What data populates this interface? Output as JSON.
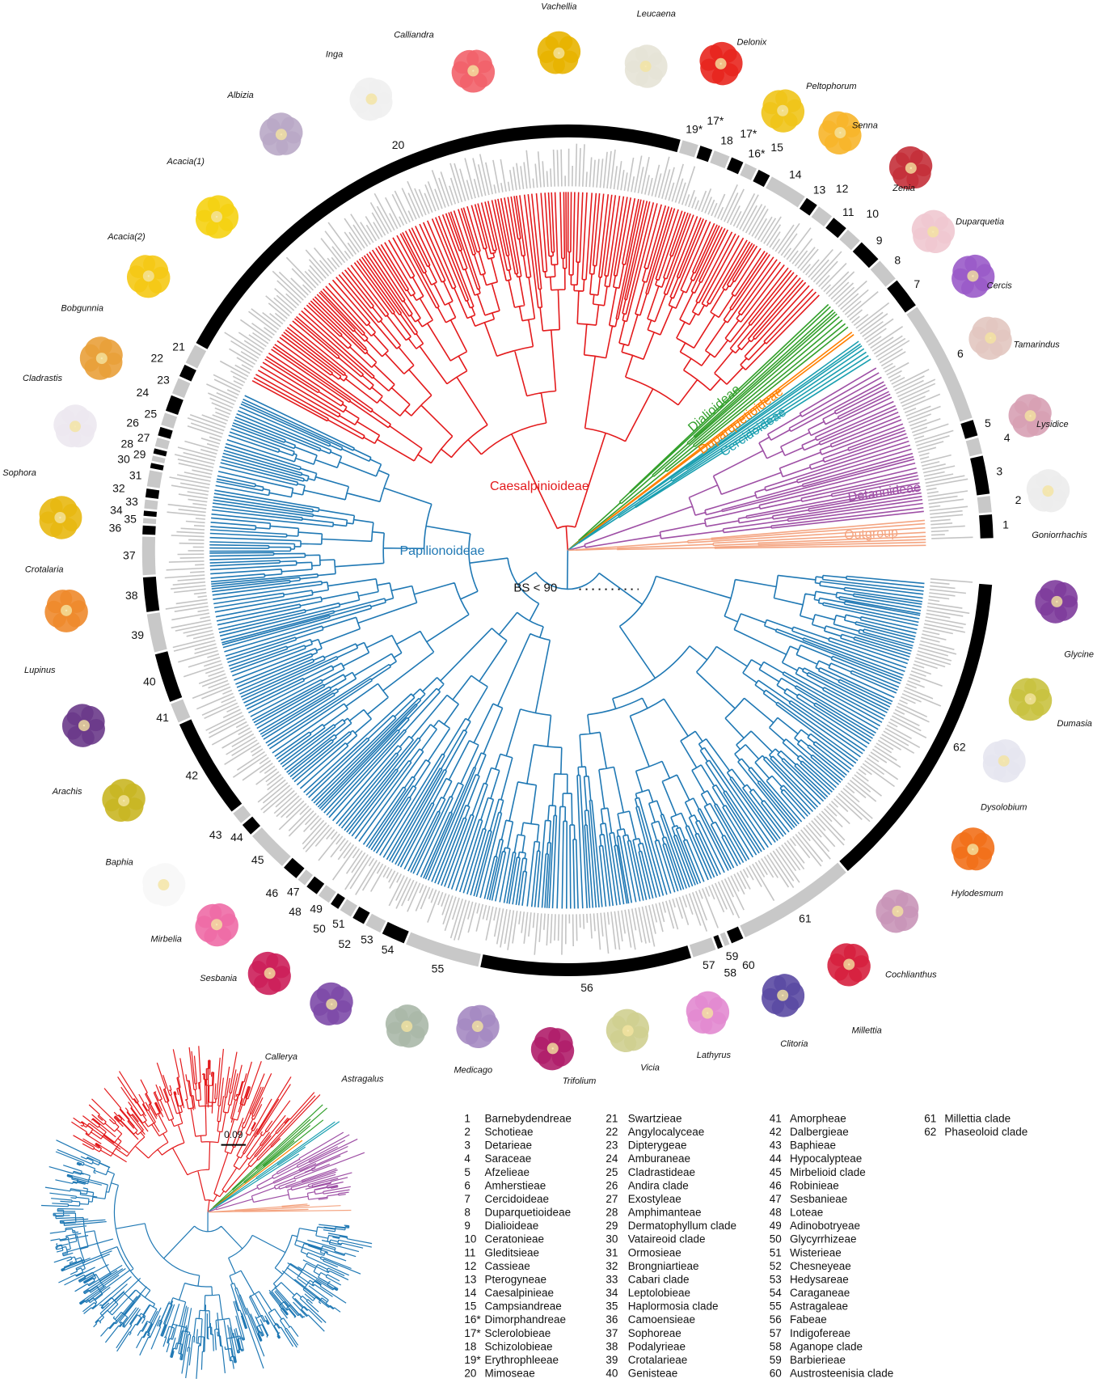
{
  "flowers": [
    "Vachellia",
    "Leucaena",
    "Calliandra",
    "Inga",
    "Albizia",
    "Delonix",
    "Peltophorum",
    "Senna",
    "Zenia",
    "Duparquetia",
    "Cercis",
    "Tamarindus",
    "Lysidice",
    "Goniorrhachis",
    "Acacia(1)",
    "Acacia(2)",
    "Bobgunnia",
    "Cladrastis",
    "Sophora",
    "Crotalaria",
    "Lupinus",
    "Arachis",
    "Baphia",
    "Mirbelia",
    "Sesbania",
    "Callerya",
    "Astragalus",
    "Medicago",
    "Trifolium",
    "Vicia",
    "Lathyrus",
    "Clitoria",
    "Millettia",
    "Cochlianthus",
    "Hylodesmum",
    "Dysolobium",
    "Dumasia",
    "Glycine"
  ],
  "clades": [
    "Caesalpinioideae",
    "Dialioideae",
    "Duparquetioideae",
    "Cercidoideae",
    "Detarioideae",
    "Outgroup",
    "Papilionoideae"
  ],
  "bootstrap_note": "BS < 90",
  "scale_bar": "0.09",
  "ring_labels": [
    "1",
    "2",
    "3",
    "4",
    "5",
    "6",
    "7",
    "8",
    "9",
    "10",
    "11",
    "12",
    "13",
    "14",
    "15",
    "16*",
    "17*",
    "18",
    "17*",
    "19*",
    "20",
    "21",
    "22",
    "23",
    "24",
    "25",
    "26",
    "27",
    "28",
    "29",
    "30",
    "31",
    "32",
    "33",
    "34",
    "35",
    "36",
    "37",
    "38",
    "39",
    "40",
    "41",
    "42",
    "43",
    "44",
    "45",
    "46",
    "47",
    "48",
    "49",
    "50",
    "51",
    "52",
    "53",
    "54",
    "55",
    "56",
    "57",
    "58",
    "59",
    "60",
    "61",
    "62"
  ],
  "legend": [
    {
      "number": "1",
      "name": "Barnebydendreae"
    },
    {
      "number": "2",
      "name": "Schotieae"
    },
    {
      "number": "3",
      "name": "Detarieae"
    },
    {
      "number": "4",
      "name": "Saraceae"
    },
    {
      "number": "5",
      "name": "Afzelieae"
    },
    {
      "number": "6",
      "name": "Amherstieae"
    },
    {
      "number": "7",
      "name": "Cercidoideae"
    },
    {
      "number": "8",
      "name": "Duparquetioideae"
    },
    {
      "number": "9",
      "name": "Dialioideae"
    },
    {
      "number": "10",
      "name": "Ceratonieae"
    },
    {
      "number": "11",
      "name": "Gleditsieae"
    },
    {
      "number": "12",
      "name": "Cassieae"
    },
    {
      "number": "13",
      "name": "Pterogyneae"
    },
    {
      "number": "14",
      "name": "Caesalpinieae"
    },
    {
      "number": "15",
      "name": "Campsiandreae"
    },
    {
      "number": "16*",
      "name": "Dimorphandreae"
    },
    {
      "number": "17*",
      "name": "Sclerolobieae"
    },
    {
      "number": "18",
      "name": "Schizolobieae"
    },
    {
      "number": "19*",
      "name": "Erythrophleeae"
    },
    {
      "number": "20",
      "name": "Mimoseae"
    },
    {
      "number": "21",
      "name": "Swartzieae"
    },
    {
      "number": "22",
      "name": "Angylocalyceae"
    },
    {
      "number": "23",
      "name": "Dipterygeae"
    },
    {
      "number": "24",
      "name": "Amburaneae"
    },
    {
      "number": "25",
      "name": "Cladrastideae"
    },
    {
      "number": "26",
      "name": "Andira clade"
    },
    {
      "number": "27",
      "name": "Exostyleae"
    },
    {
      "number": "28",
      "name": "Amphimanteae"
    },
    {
      "number": "29",
      "name": "Dermatophyllum clade"
    },
    {
      "number": "30",
      "name": "Vataireoid clade"
    },
    {
      "number": "31",
      "name": "Ormosieae"
    },
    {
      "number": "32",
      "name": "Brongniartieae"
    },
    {
      "number": "33",
      "name": "Cabari clade"
    },
    {
      "number": "34",
      "name": "Leptolobieae"
    },
    {
      "number": "35",
      "name": "Haplormosia clade"
    },
    {
      "number": "36",
      "name": "Camoensieae"
    },
    {
      "number": "37",
      "name": "Sophoreae"
    },
    {
      "number": "38",
      "name": "Podalyrieae"
    },
    {
      "number": "39",
      "name": "Crotalarieae"
    },
    {
      "number": "40",
      "name": "Genisteae"
    },
    {
      "number": "41",
      "name": "Amorpheae"
    },
    {
      "number": "42",
      "name": "Dalbergieae"
    },
    {
      "number": "43",
      "name": "Baphieae"
    },
    {
      "number": "44",
      "name": "Hypocalypteae"
    },
    {
      "number": "45",
      "name": "Mirbelioid clade"
    },
    {
      "number": "46",
      "name": "Robinieae"
    },
    {
      "number": "47",
      "name": "Sesbanieae"
    },
    {
      "number": "48",
      "name": "Loteae"
    },
    {
      "number": "49",
      "name": "Adinobotryeae"
    },
    {
      "number": "50",
      "name": "Glycyrrhizeae"
    },
    {
      "number": "51",
      "name": "Wisterieae"
    },
    {
      "number": "52",
      "name": "Chesneyeae"
    },
    {
      "number": "53",
      "name": "Hedysareae"
    },
    {
      "number": "54",
      "name": "Caraganeae"
    },
    {
      "number": "55",
      "name": "Astragaleae"
    },
    {
      "number": "56",
      "name": "Fabeae"
    },
    {
      "number": "57",
      "name": "Indigofereae"
    },
    {
      "number": "58",
      "name": "Aganope clade"
    },
    {
      "number": "59",
      "name": "Barbierieae"
    },
    {
      "number": "60",
      "name": "Austrosteenisia clade"
    },
    {
      "number": "61",
      "name": "Millettia clade"
    },
    {
      "number": "62",
      "name": "Phaseoloid clade"
    }
  ]
}
